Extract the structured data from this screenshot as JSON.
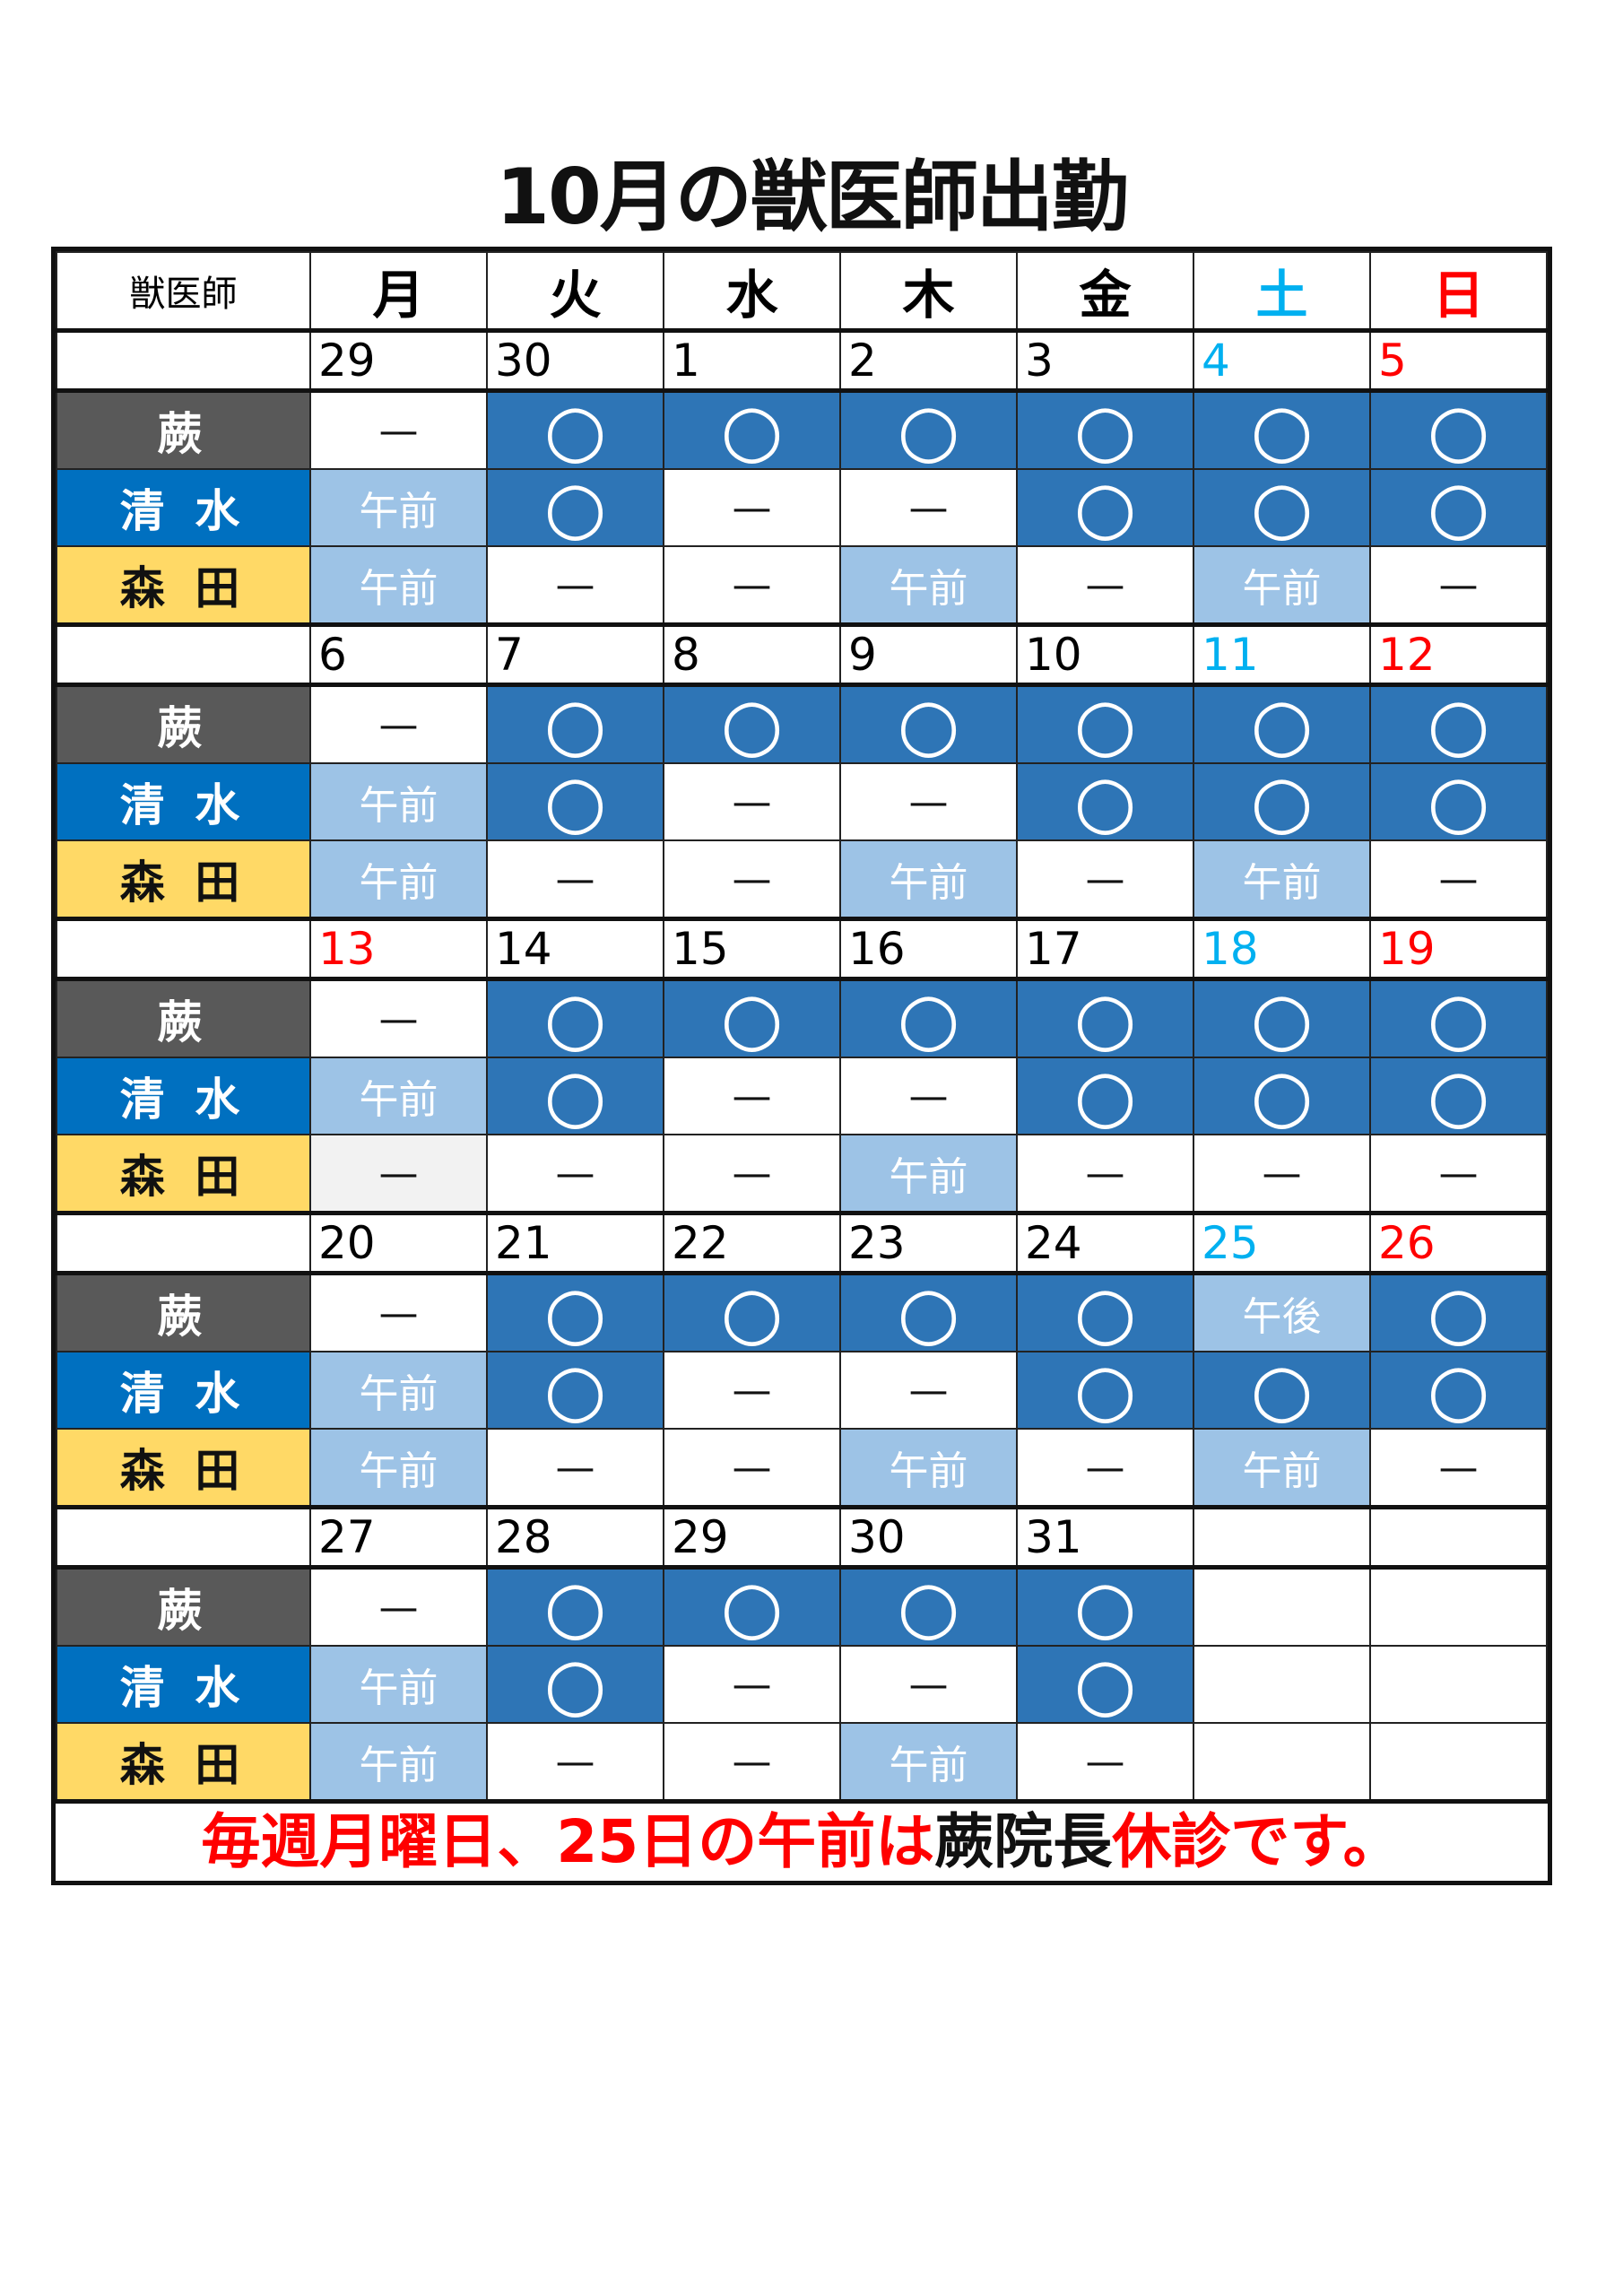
{
  "title": "10月の獣医師出勤",
  "header": {
    "label": "獣医師",
    "days": [
      {
        "text": "月",
        "color": ""
      },
      {
        "text": "火",
        "color": ""
      },
      {
        "text": "水",
        "color": ""
      },
      {
        "text": "木",
        "color": ""
      },
      {
        "text": "金",
        "color": ""
      },
      {
        "text": "土",
        "color": "sat"
      },
      {
        "text": "日",
        "color": "sun"
      }
    ]
  },
  "doctors": [
    "蕨",
    "清 水",
    "森 田"
  ],
  "colors": {
    "doctor_bg": [
      "#595959",
      "#0070c0",
      "#ffd966"
    ],
    "attend": "#2e75b6",
    "partial": "#9dc3e6",
    "holiday_cell": "#f2f2f2",
    "saturday": "#00b0f0",
    "sunday": "#ff0000"
  },
  "weeks": [
    {
      "dates": [
        {
          "d": "29",
          "c": ""
        },
        {
          "d": "30",
          "c": ""
        },
        {
          "d": "1",
          "c": ""
        },
        {
          "d": "2",
          "c": ""
        },
        {
          "d": "3",
          "c": ""
        },
        {
          "d": "4",
          "c": "sat"
        },
        {
          "d": "5",
          "c": "sun"
        }
      ],
      "rows": [
        [
          "—",
          "○",
          "○",
          "○",
          "○",
          "○",
          "○"
        ],
        [
          "午前",
          "○",
          "—",
          "—",
          "○",
          "○",
          "○"
        ],
        [
          "午前",
          "—",
          "—",
          "午前",
          "—",
          "午前",
          "—"
        ]
      ]
    },
    {
      "dates": [
        {
          "d": "6",
          "c": ""
        },
        {
          "d": "7",
          "c": ""
        },
        {
          "d": "8",
          "c": ""
        },
        {
          "d": "9",
          "c": ""
        },
        {
          "d": "10",
          "c": ""
        },
        {
          "d": "11",
          "c": "sat"
        },
        {
          "d": "12",
          "c": "sun"
        }
      ],
      "rows": [
        [
          "—",
          "○",
          "○",
          "○",
          "○",
          "○",
          "○"
        ],
        [
          "午前",
          "○",
          "—",
          "—",
          "○",
          "○",
          "○"
        ],
        [
          "午前",
          "—",
          "—",
          "午前",
          "—",
          "午前",
          "—"
        ]
      ]
    },
    {
      "dates": [
        {
          "d": "13",
          "c": "sun"
        },
        {
          "d": "14",
          "c": ""
        },
        {
          "d": "15",
          "c": ""
        },
        {
          "d": "16",
          "c": ""
        },
        {
          "d": "17",
          "c": ""
        },
        {
          "d": "18",
          "c": "sat"
        },
        {
          "d": "19",
          "c": "sun"
        }
      ],
      "rows": [
        [
          "—",
          "○",
          "○",
          "○",
          "○",
          "○",
          "○"
        ],
        [
          "午前",
          "○",
          "—",
          "—",
          "○",
          "○",
          "○"
        ],
        [
          "—",
          "—",
          "—",
          "午前",
          "—",
          "—",
          "—"
        ]
      ],
      "gray_cells": [
        [
          2,
          0
        ]
      ]
    },
    {
      "dates": [
        {
          "d": "20",
          "c": ""
        },
        {
          "d": "21",
          "c": ""
        },
        {
          "d": "22",
          "c": ""
        },
        {
          "d": "23",
          "c": ""
        },
        {
          "d": "24",
          "c": ""
        },
        {
          "d": "25",
          "c": "sat"
        },
        {
          "d": "26",
          "c": "sun"
        }
      ],
      "rows": [
        [
          "—",
          "○",
          "○",
          "○",
          "○",
          "午後",
          "○"
        ],
        [
          "午前",
          "○",
          "—",
          "—",
          "○",
          "○",
          "○"
        ],
        [
          "午前",
          "—",
          "—",
          "午前",
          "—",
          "午前",
          "—"
        ]
      ]
    },
    {
      "dates": [
        {
          "d": "27",
          "c": ""
        },
        {
          "d": "28",
          "c": ""
        },
        {
          "d": "29",
          "c": ""
        },
        {
          "d": "30",
          "c": ""
        },
        {
          "d": "31",
          "c": ""
        },
        {
          "d": "",
          "c": ""
        },
        {
          "d": "",
          "c": ""
        }
      ],
      "rows": [
        [
          "—",
          "○",
          "○",
          "○",
          "○",
          "",
          ""
        ],
        [
          "午前",
          "○",
          "—",
          "—",
          "○",
          "",
          ""
        ],
        [
          "午前",
          "—",
          "—",
          "午前",
          "—",
          "",
          ""
        ]
      ]
    }
  ],
  "note": {
    "part1": "毎週月曜日、25日の午前は",
    "part2": "蕨院長",
    "part3": "休診です。"
  }
}
